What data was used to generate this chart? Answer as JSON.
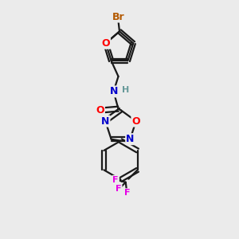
{
  "bg_color": "#ebebeb",
  "bond_color": "#1a1a1a",
  "atom_colors": {
    "Br": "#b35900",
    "O": "#ff0000",
    "N": "#0000cc",
    "H": "#669999",
    "F": "#e600e6",
    "C": "#1a1a1a"
  },
  "font_size": 9,
  "line_width": 1.6,
  "figsize": [
    3.0,
    3.0
  ],
  "dpi": 100
}
